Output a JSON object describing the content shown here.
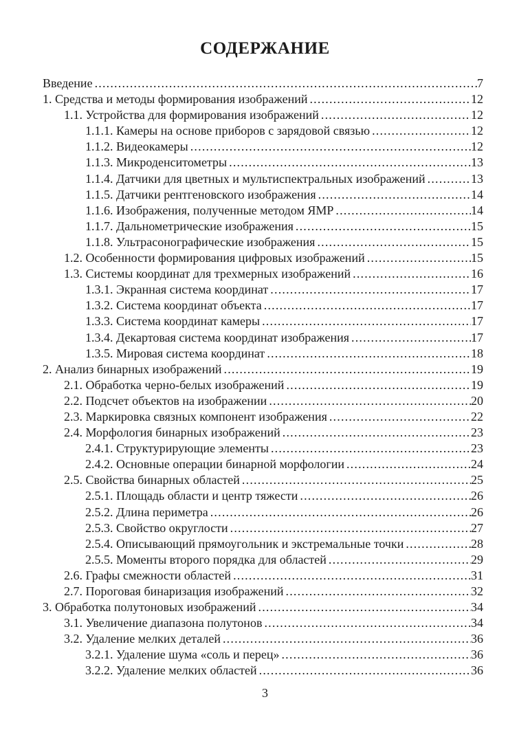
{
  "document": {
    "title": "СОДЕРЖАНИЕ",
    "folio": "3",
    "colors": {
      "text": "#1c1c1c",
      "background": "#ffffff"
    },
    "entries": [
      {
        "level": 0,
        "label": "Введение",
        "page": "7"
      },
      {
        "level": 0,
        "label": "1. Средства и методы формирования изображений",
        "page": "12"
      },
      {
        "level": 1,
        "label": "1.1. Устройства для формирования изображений",
        "page": "12"
      },
      {
        "level": 2,
        "label": "1.1.1. Камеры на основе приборов с зарядовой связью",
        "page": "12"
      },
      {
        "level": 2,
        "label": "1.1.2. Видеокамеры",
        "page": "12"
      },
      {
        "level": 2,
        "label": "1.1.3. Микроденситометры",
        "page": "13"
      },
      {
        "level": 2,
        "label": "1.1.4. Датчики для цветных и мультиспектральных изображений",
        "page": "13"
      },
      {
        "level": 2,
        "label": "1.1.5. Датчики рентгеновского изображения",
        "page": "14"
      },
      {
        "level": 2,
        "label": "1.1.6. Изображения, полученные методом ЯМР",
        "page": "14"
      },
      {
        "level": 2,
        "label": "1.1.7. Дальнометрические изображения",
        "page": "15"
      },
      {
        "level": 2,
        "label": "1.1.8. Ультрасонографические изображения",
        "page": "15"
      },
      {
        "level": 1,
        "label": "1.2. Особенности формирования цифровых изображений",
        "page": "15"
      },
      {
        "level": 1,
        "label": "1.3. Системы координат для трехмерных изображений",
        "page": "16"
      },
      {
        "level": 2,
        "label": "1.3.1. Экранная система координат",
        "page": "17"
      },
      {
        "level": 2,
        "label": "1.3.2. Система координат объекта",
        "page": "17"
      },
      {
        "level": 2,
        "label": "1.3.3. Система координат камеры",
        "page": "17"
      },
      {
        "level": 2,
        "label": "1.3.4. Декартовая система координат изображения",
        "page": "17"
      },
      {
        "level": 2,
        "label": "1.3.5. Мировая система координат",
        "page": "18"
      },
      {
        "level": 0,
        "label": "2. Анализ бинарных изображений",
        "page": "19"
      },
      {
        "level": 1,
        "label": "2.1. Обработка черно-белых изображений",
        "page": "19"
      },
      {
        "level": 1,
        "label": "2.2. Подсчет объектов на изображении",
        "page": "20"
      },
      {
        "level": 1,
        "label": "2.3. Маркировка связных компонент изображения",
        "page": "22"
      },
      {
        "level": 1,
        "label": "2.4. Морфология бинарных изображений",
        "page": "23"
      },
      {
        "level": 2,
        "label": "2.4.1. Структурирующие элементы",
        "page": "23"
      },
      {
        "level": 2,
        "label": "2.4.2. Основные операции бинарной морфологии",
        "page": "24"
      },
      {
        "level": 1,
        "label": "2.5. Свойства бинарных областей",
        "page": "25"
      },
      {
        "level": 2,
        "label": "2.5.1. Площадь области и центр тяжести",
        "page": "26"
      },
      {
        "level": 2,
        "label": "2.5.2. Длина периметра",
        "page": "26"
      },
      {
        "level": 2,
        "label": "2.5.3. Свойство округлости",
        "page": "27"
      },
      {
        "level": 2,
        "label": "2.5.4. Описывающий прямоугольник и экстремальные точки",
        "page": "28"
      },
      {
        "level": 2,
        "label": "2.5.5. Моменты второго порядка для областей",
        "page": "29"
      },
      {
        "level": 1,
        "label": "2.6. Графы смежности областей",
        "page": "31"
      },
      {
        "level": 1,
        "label": "2.7. Пороговая бинаризация изображений",
        "page": "32"
      },
      {
        "level": 0,
        "label": "3. Обработка полутоновых изображений",
        "page": "34"
      },
      {
        "level": 1,
        "label": "3.1. Увеличение диапазона полутонов",
        "page": "34"
      },
      {
        "level": 1,
        "label": "3.2. Удаление мелких деталей",
        "page": "36"
      },
      {
        "level": 2,
        "label": "3.2.1. Удаление шума «соль и перец»",
        "page": "36"
      },
      {
        "level": 2,
        "label": "3.2.2. Удаление мелких областей",
        "page": "36"
      }
    ]
  }
}
